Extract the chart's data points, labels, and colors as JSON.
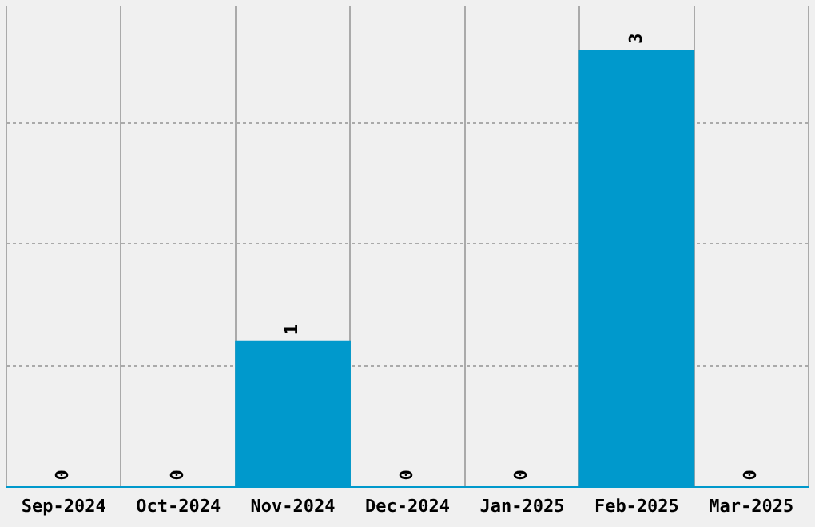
{
  "chart_data": {
    "type": "bar",
    "categories": [
      "Sep-2024",
      "Oct-2024",
      "Nov-2024",
      "Dec-2024",
      "Jan-2025",
      "Feb-2025",
      "Mar-2025"
    ],
    "values": [
      0,
      0,
      1,
      0,
      0,
      3,
      0
    ],
    "color": "#0099cc",
    "relative": false,
    "ylim": [
      0,
      3.3
    ],
    "yticks": [
      {
        "value": 0,
        "label": null
      },
      {
        "value": 0.83,
        "label": null
      },
      {
        "value": 1.67,
        "label": null
      },
      {
        "value": 2.5,
        "label": null
      }
    ],
    "grid": true,
    "data_labels": true,
    "tick_labels": "x",
    "legend": false
  }
}
